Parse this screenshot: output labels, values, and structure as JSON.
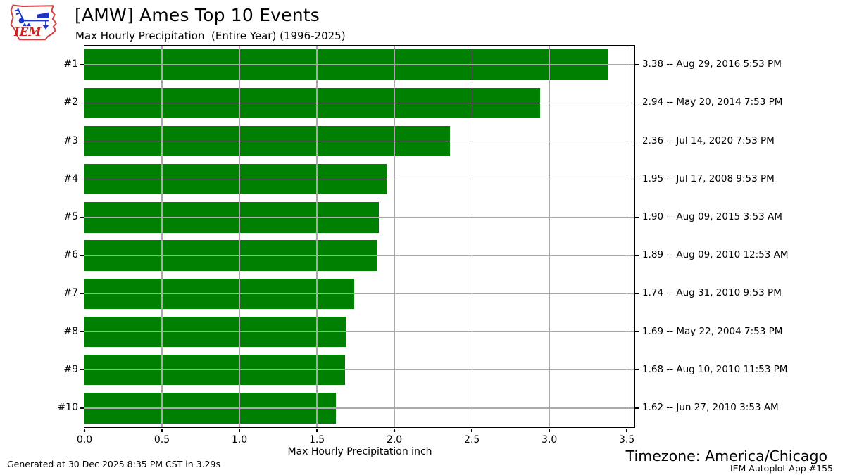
{
  "header": {
    "title": "[AMW] Ames Top 10 Events",
    "subtitle": "Max Hourly Precipitation  (Entire Year) (1996-2025)",
    "logo_text": "IEM"
  },
  "chart_data": {
    "type": "bar",
    "orientation": "horizontal",
    "title": "[AMW] Ames Top 10 Events",
    "subtitle": "Max Hourly Precipitation  (Entire Year) (1996-2025)",
    "categories": [
      "#1",
      "#2",
      "#3",
      "#4",
      "#5",
      "#6",
      "#7",
      "#8",
      "#9",
      "#10"
    ],
    "values": [
      3.38,
      2.94,
      2.36,
      1.95,
      1.9,
      1.89,
      1.74,
      1.69,
      1.68,
      1.62
    ],
    "bar_labels": [
      "3.38 -- Aug 29, 2016 5:53 PM",
      "2.94 -- May 20, 2014 7:53 PM",
      "2.36 -- Jul 14, 2020 7:53 PM",
      "1.95 -- Jul 17, 2008 9:53 PM",
      "1.90 -- Aug 09, 2015 3:53 AM",
      "1.89 -- Aug 09, 2010 12:53 AM",
      "1.74 -- Aug 31, 2010 9:53 PM",
      "1.69 -- May 22, 2004 7:53 PM",
      "1.68 -- Aug 10, 2010 11:53 PM",
      "1.62 -- Jun 27, 2010 3:53 AM"
    ],
    "xlabel": "Max Hourly Precipitation inch",
    "ylabel": "",
    "xticks": [
      0,
      0.5,
      1,
      1.5,
      2,
      2.5,
      3,
      3.5
    ],
    "xtick_labels": [
      "0.0",
      "0.5",
      "1.0",
      "1.5",
      "2.0",
      "2.5",
      "3.0",
      "3.5"
    ],
    "xlim": [
      0,
      3.549
    ],
    "grid": true,
    "legend_position": "none",
    "bar_color": "#008000",
    "grid_color": "#a9a9a9"
  },
  "footer": {
    "generated": "Generated at 30 Dec 2025 8:35 PM CST in 3.29s",
    "timezone": "Timezone: America/Chicago",
    "app_credit": "IEM Autoplot App #155"
  }
}
